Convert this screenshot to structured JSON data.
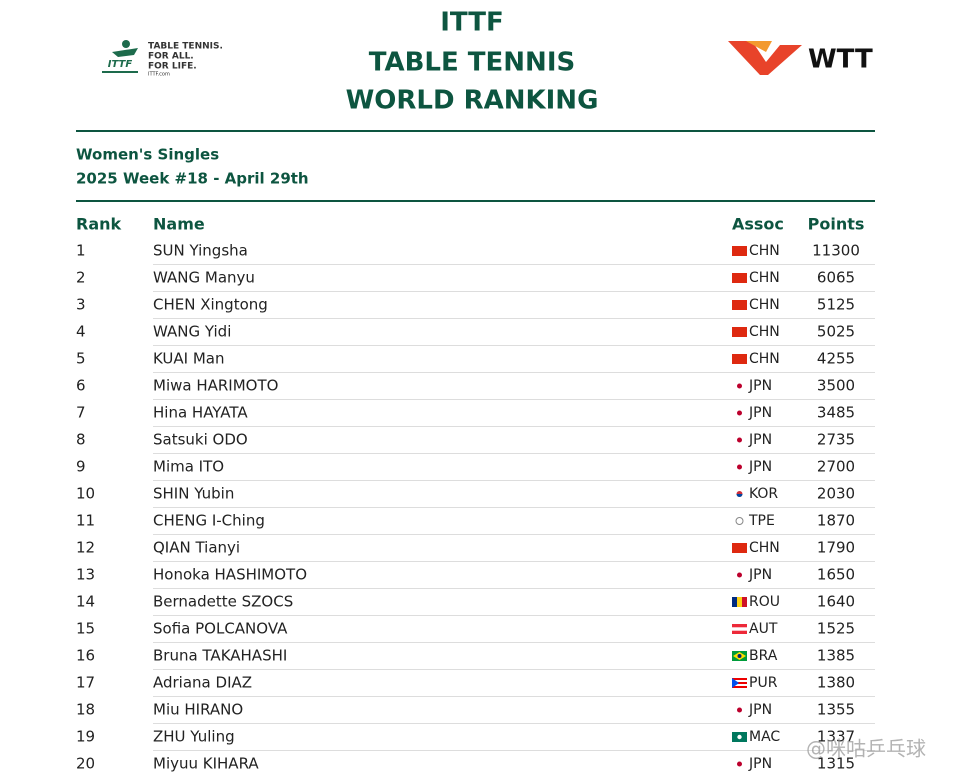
{
  "header": {
    "title_lines": [
      "ITTF",
      "TABLE TENNIS",
      "WORLD RANKING"
    ],
    "left_logo": {
      "mark": "ITTF",
      "lines": [
        "TABLE TENNIS.",
        "FOR ALL.",
        "FOR LIFE."
      ],
      "url": "ITTF.com"
    },
    "right_logo": "WTT"
  },
  "subtitle": {
    "event": "Women's Singles",
    "week": "2025 Week #18 - April 29th"
  },
  "table": {
    "columns": [
      "Rank",
      "Name",
      "Assoc",
      "Points"
    ],
    "rows": [
      [
        "1",
        "SUN Yingsha",
        "CHN",
        "11300"
      ],
      [
        "2",
        "WANG Manyu",
        "CHN",
        "6065"
      ],
      [
        "3",
        "CHEN Xingtong",
        "CHN",
        "5125"
      ],
      [
        "4",
        "WANG Yidi",
        "CHN",
        "5025"
      ],
      [
        "5",
        "KUAI Man",
        "CHN",
        "4255"
      ],
      [
        "6",
        "Miwa HARIMOTO",
        "JPN",
        "3500"
      ],
      [
        "7",
        "Hina HAYATA",
        "JPN",
        "3485"
      ],
      [
        "8",
        "Satsuki ODO",
        "JPN",
        "2735"
      ],
      [
        "9",
        "Mima ITO",
        "JPN",
        "2700"
      ],
      [
        "10",
        "SHIN Yubin",
        "KOR",
        "2030"
      ],
      [
        "11",
        "CHENG I-Ching",
        "TPE",
        "1870"
      ],
      [
        "12",
        "QIAN Tianyi",
        "CHN",
        "1790"
      ],
      [
        "13",
        "Honoka HASHIMOTO",
        "JPN",
        "1650"
      ],
      [
        "14",
        "Bernadette SZOCS",
        "ROU",
        "1640"
      ],
      [
        "15",
        "Sofia POLCANOVA",
        "AUT",
        "1525"
      ],
      [
        "16",
        "Bruna TAKAHASHI",
        "BRA",
        "1385"
      ],
      [
        "17",
        "Adriana DIAZ",
        "PUR",
        "1380"
      ],
      [
        "18",
        "Miu HIRANO",
        "JPN",
        "1355"
      ],
      [
        "19",
        "ZHU Yuling",
        "MAC",
        "1337"
      ],
      [
        "20",
        "Miyuu KIHARA",
        "JPN",
        "1315"
      ]
    ]
  },
  "watermark": "@咪咕乒乓球"
}
